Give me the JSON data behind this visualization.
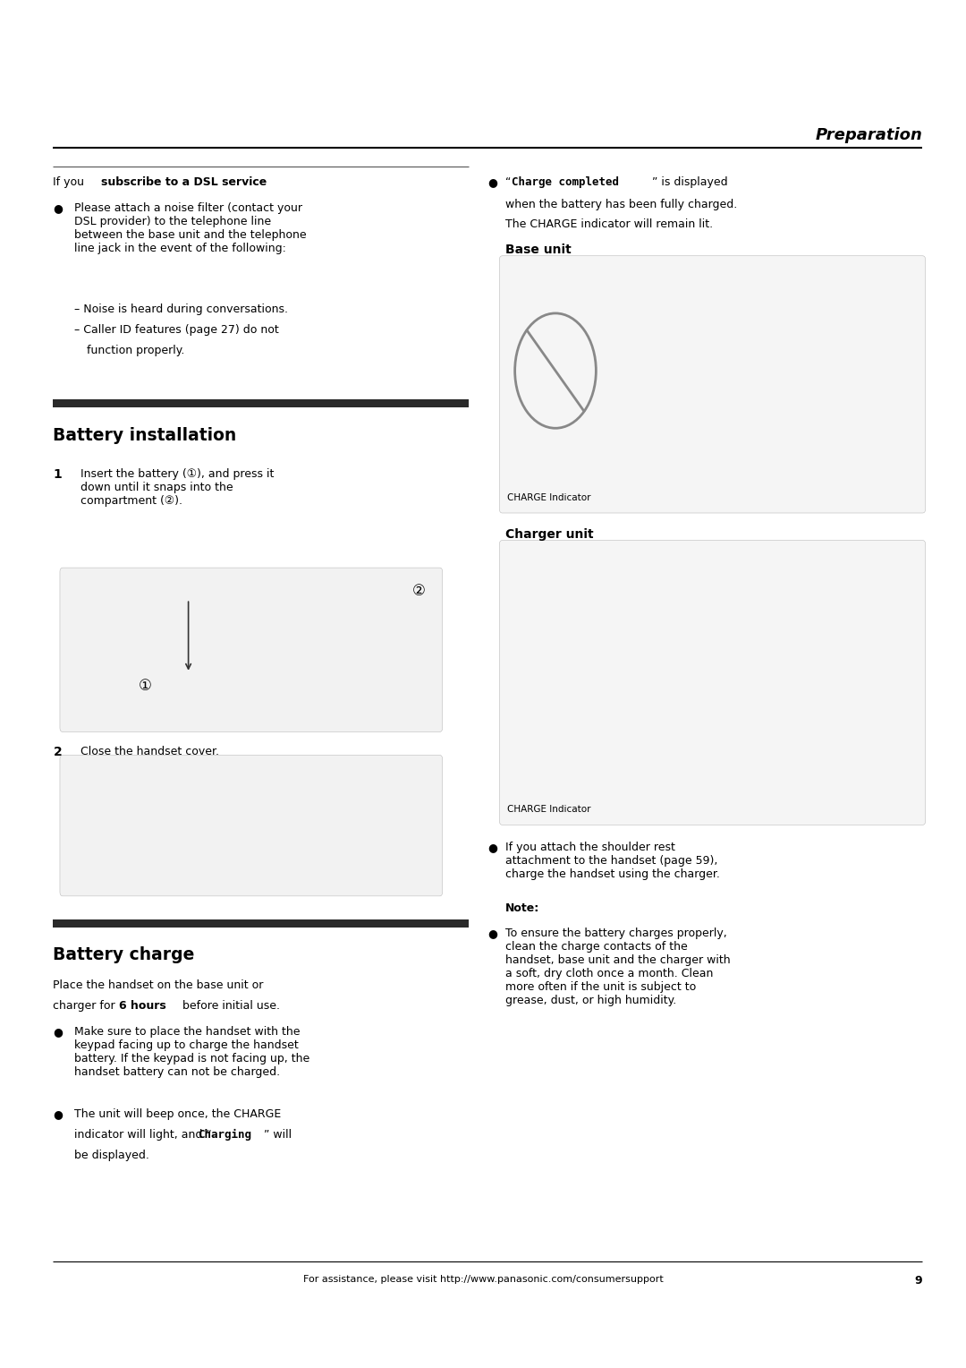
{
  "page_width": 10.8,
  "page_height": 15.28,
  "bg_color": "#ffffff",
  "header_title": "Preparation",
  "footer_text": "For assistance, please visit http://www.panasonic.com/consumersupport",
  "footer_page": "9",
  "dsl_heading_normal": "If you ",
  "dsl_heading_bold": "subscribe to a DSL service",
  "dsl_bullet": "Please attach a noise filter (contact your\nDSL provider) to the telephone line\nbetween the base unit and the telephone\nline jack in the event of the following:",
  "dsl_sub1": "– Noise is heard during conversations.",
  "dsl_sub2": "– Caller ID features (page 27) do not",
  "dsl_sub2b": "function properly.",
  "charge_completed_mono": "Charge completed",
  "charge_completed_rest": " is displayed\nwhen the battery has been fully charged.\nThe CHARGE indicator will remain lit.",
  "base_unit_label": "Base unit",
  "charge_indicator_label": "CHARGE Indicator",
  "charger_unit_label": "Charger unit",
  "charge_indicator_label2": "CHARGE Indicator",
  "battery_install_heading": "Battery installation",
  "step1_num": "1",
  "step1_text": "Insert the battery (①), and press it\ndown until it snaps into the\ncompartment (②).",
  "step2_num": "2",
  "step2_text": "Close the handset cover.",
  "battery_charge_heading": "Battery charge",
  "battery_charge_intro1": "Place the handset on the base unit or",
  "battery_charge_intro2": "charger for ",
  "battery_charge_bold": "6 hours",
  "battery_charge_intro3": " before initial use.",
  "bullet1": "Make sure to place the handset with the\nkeypad facing up to charge the handset\nbattery. If the keypad is not facing up, the\nhandset battery can not be charged.",
  "bullet2a": "The unit will beep once, the CHARGE",
  "bullet2b": "indicator will light, and “",
  "bullet2_mono": "Charging",
  "bullet2c": "” will",
  "bullet2d": "be displayed.",
  "note_heading": "Note:",
  "note_bullet": "To ensure the battery charges properly,\nclean the charge contacts of the\nhandset, base unit and the charger with\na soft, dry cloth once a month. Clean\nmore often if the unit is subject to\ngrease, dust, or high humidity.",
  "right_attach_note": "If you attach the shoulder rest\nattachment to the handset (page 59),\ncharge the handset using the charger."
}
